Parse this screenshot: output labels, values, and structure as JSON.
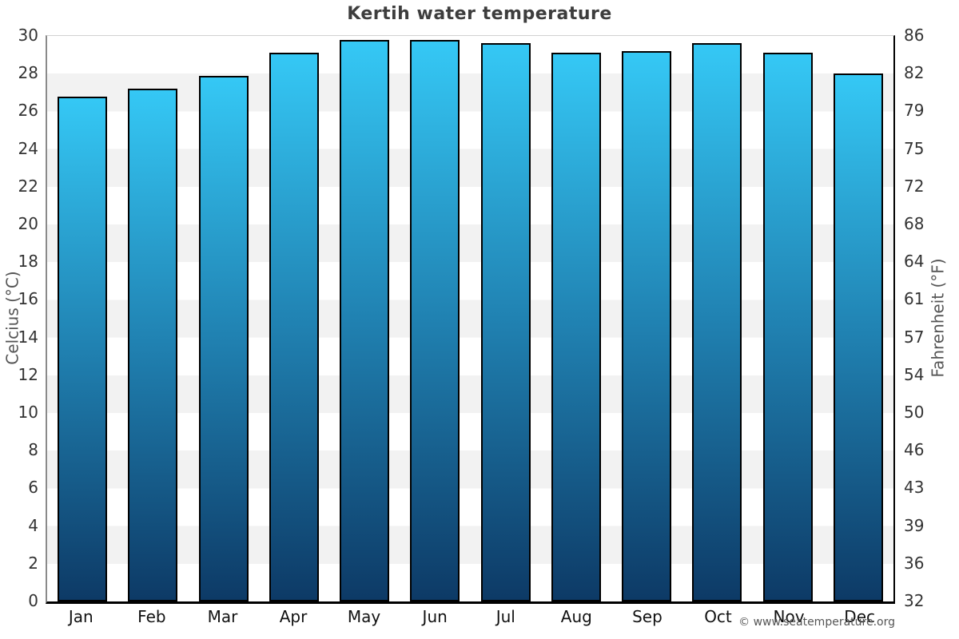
{
  "title": "Kertih water temperature",
  "footer": {
    "text": "© www.seatemperature.org"
  },
  "colors": {
    "bar_top": "#35c8f5",
    "bar_mid": "#2081b1",
    "bar_bottom": "#0d3a66",
    "bar_border": "#000000",
    "stripe_gray": "#f2f2f2",
    "stripe_white": "#ffffff",
    "title_text": "#3d3d3d",
    "tick_text": "#333333",
    "axis_label_text": "#555555"
  },
  "chart_data": {
    "type": "bar",
    "title": "Kertih water temperature",
    "categories": [
      "Jan",
      "Feb",
      "Mar",
      "Apr",
      "May",
      "Jun",
      "Jul",
      "Aug",
      "Sep",
      "Oct",
      "Nov",
      "Dec"
    ],
    "values": [
      26.8,
      27.2,
      27.9,
      29.1,
      29.8,
      29.8,
      29.6,
      29.1,
      29.2,
      29.6,
      29.1,
      28.0
    ],
    "unit": "°C",
    "ylabel_left": "Celcius (°C)",
    "ylabel_right": "Fahrenheit (°F)",
    "ylim": [
      0,
      30
    ],
    "y_left_ticks": [
      0,
      2,
      4,
      6,
      8,
      10,
      12,
      14,
      16,
      18,
      20,
      22,
      24,
      26,
      28,
      30
    ],
    "y_right_ticks": [
      32,
      36,
      39,
      43,
      46,
      50,
      54,
      57,
      61,
      64,
      68,
      72,
      75,
      79,
      82,
      86
    ],
    "grid": "alternating horizontal bands every 2°C, white and light gray",
    "legend": "none",
    "bar_fill": "vertical gradient, cyan top to dark navy bottom"
  }
}
